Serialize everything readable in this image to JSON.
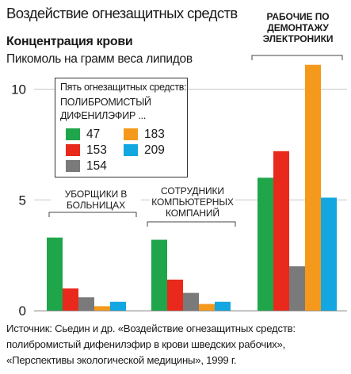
{
  "title": "Воздействие огнезащитных средств",
  "subtitle": "Концентрация крови",
  "units": "Пикомоль на грамм веса липидов",
  "legend": {
    "heading": "Пять огнезащитных средств:",
    "compound": "ПОЛИБРОМИСТЫЙ ДИФЕНИЛЭФИР ...",
    "items": [
      {
        "label": "47",
        "color": "#1fa64a"
      },
      {
        "label": "153",
        "color": "#e8291c"
      },
      {
        "label": "154",
        "color": "#7a7a7a"
      },
      {
        "label": "183",
        "color": "#f5991c"
      },
      {
        "label": "209",
        "color": "#12a7e0"
      }
    ]
  },
  "groups": [
    "УБОРЩИКИ В БОЛЬНИЦАХ",
    "СОТРУДНИКИ КОМПЬЮТЕРНЫХ КОМПАНИЙ",
    "РАБОЧИЕ ПО ДЕМОНТАЖУ ЭЛЕКТРОНИКИ"
  ],
  "chart_data": {
    "type": "bar",
    "categories": [
      "УБОРЩИКИ В БОЛЬНИЦАХ",
      "СОТРУДНИКИ КОМПЬЮТЕРНЫХ КОМПАНИЙ",
      "РАБОЧИЕ ПО ДЕМОНТАЖУ ЭЛЕКТРОНИКИ"
    ],
    "series": [
      {
        "name": "47",
        "color": "#1fa64a",
        "values": [
          3.3,
          3.2,
          6.0
        ]
      },
      {
        "name": "153",
        "color": "#e8291c",
        "values": [
          1.0,
          1.4,
          7.2
        ]
      },
      {
        "name": "154",
        "color": "#7a7a7a",
        "values": [
          0.6,
          0.8,
          2.0
        ]
      },
      {
        "name": "183",
        "color": "#f5991c",
        "values": [
          0.2,
          0.3,
          11.1
        ]
      },
      {
        "name": "209",
        "color": "#12a7e0",
        "values": [
          0.4,
          0.4,
          5.1
        ]
      }
    ],
    "ylim": [
      0,
      11.1
    ],
    "yticks": [
      "0",
      "5",
      "10"
    ],
    "grid": "horizontal"
  },
  "source": "Источник: Сьедин и др. «Воздействие огнезащитных средств: полибромистый дифенилэфир в крови шведских рабочих», «Перспективы экологической медицины», 1999 г."
}
